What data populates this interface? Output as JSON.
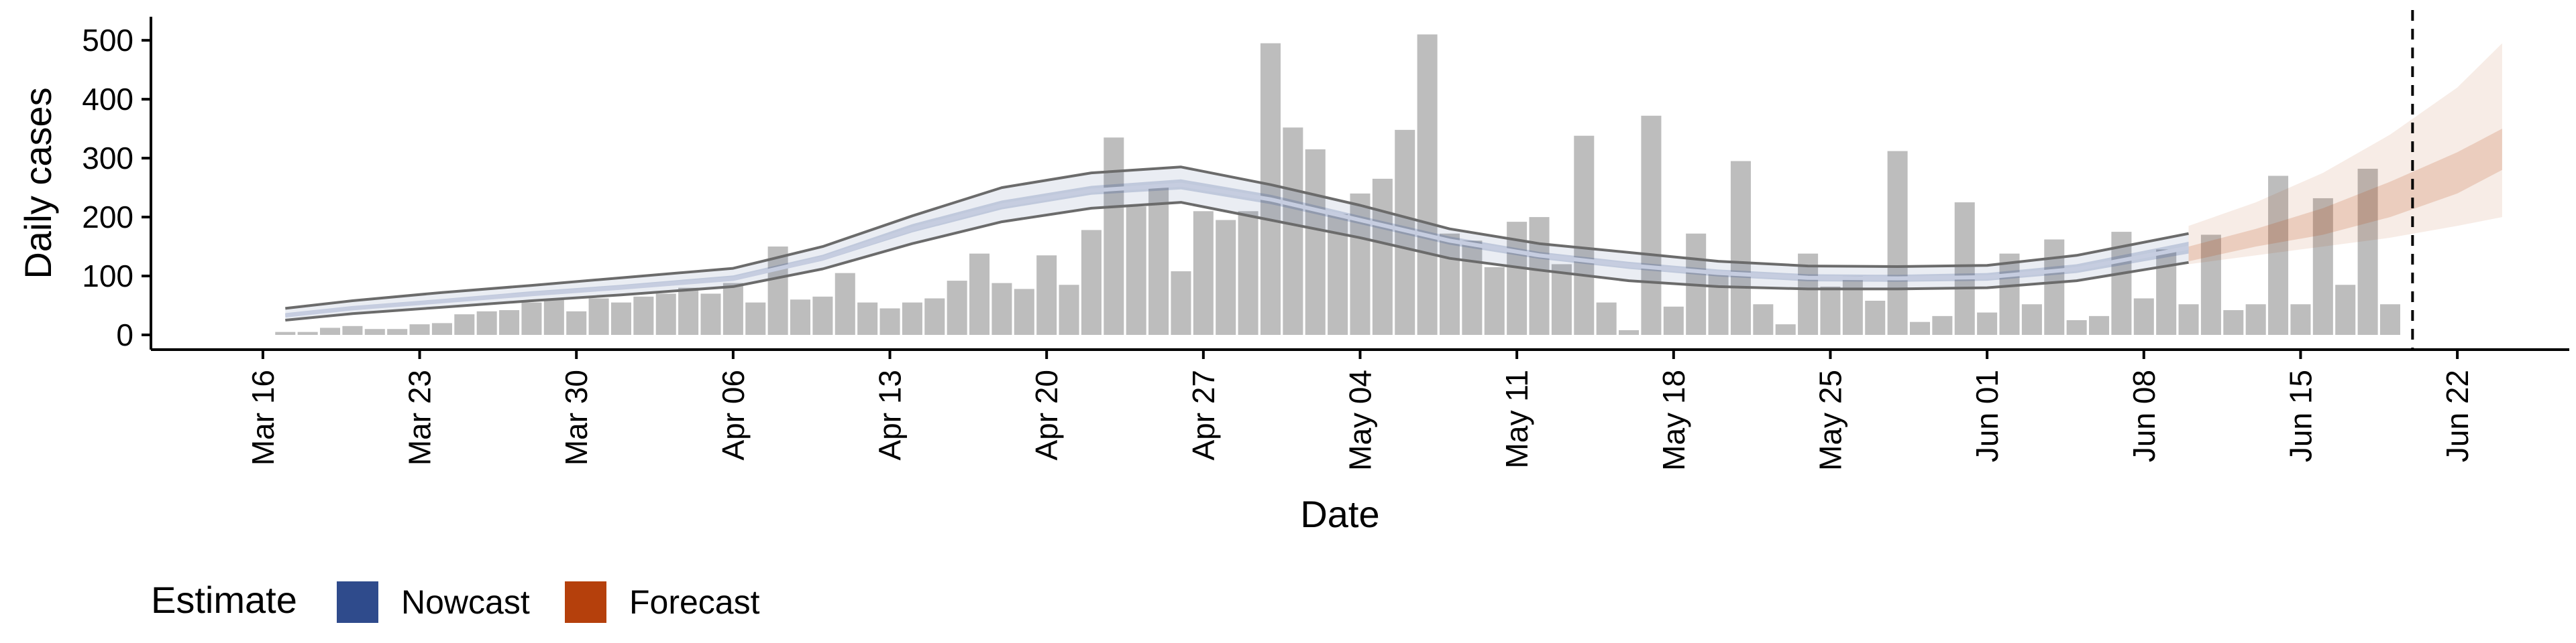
{
  "chart_data": {
    "type": "bar",
    "xlabel": "Date",
    "ylabel": "Daily cases",
    "ylim": [
      -25,
      540
    ],
    "y_ticks": [
      0,
      100,
      200,
      300,
      400,
      500
    ],
    "y_tick_labels": [
      "0",
      "100",
      "200",
      "300",
      "400",
      "500"
    ],
    "x_range": [
      "2020-03-11",
      "2020-06-27"
    ],
    "x_ticks": [
      "2020-03-16",
      "2020-03-23",
      "2020-03-30",
      "2020-04-06",
      "2020-04-13",
      "2020-04-20",
      "2020-04-27",
      "2020-05-04",
      "2020-05-11",
      "2020-05-18",
      "2020-05-25",
      "2020-06-01",
      "2020-06-08",
      "2020-06-15",
      "2020-06-22"
    ],
    "x_tick_labels": [
      "Mar 16",
      "Mar 23",
      "Mar 30",
      "Apr 06",
      "Apr 13",
      "Apr 20",
      "Apr 27",
      "May 04",
      "May 11",
      "May 18",
      "May 25",
      "Jun 01",
      "Jun 08",
      "Jun 15",
      "Jun 22"
    ],
    "grid": false,
    "bars": {
      "color": "#bdbdbd",
      "start_date": "2020-03-17",
      "values": [
        5,
        5,
        12,
        15,
        10,
        10,
        18,
        20,
        35,
        40,
        42,
        55,
        60,
        40,
        62,
        55,
        65,
        70,
        80,
        70,
        88,
        55,
        150,
        60,
        65,
        105,
        55,
        45,
        55,
        62,
        92,
        138,
        88,
        78,
        135,
        85,
        178,
        335,
        218,
        250,
        108,
        210,
        195,
        210,
        495,
        352,
        315,
        205,
        240,
        265,
        348,
        510,
        172,
        160,
        115,
        192,
        200,
        120,
        338,
        55,
        8,
        372,
        48,
        172,
        105,
        295,
        52,
        18,
        138,
        82,
        100,
        58,
        312,
        22,
        32,
        225,
        38,
        138,
        52,
        162,
        25,
        32,
        175,
        62,
        145,
        52,
        170,
        42,
        52,
        270,
        52,
        232,
        85,
        282,
        52
      ]
    },
    "nowcast": {
      "name": "Nowcast",
      "color": "#2f4b8c",
      "x": [
        "2020-03-17",
        "2020-03-20",
        "2020-03-24",
        "2020-03-28",
        "2020-04-01",
        "2020-04-06",
        "2020-04-10",
        "2020-04-14",
        "2020-04-18",
        "2020-04-22",
        "2020-04-26",
        "2020-04-30",
        "2020-05-04",
        "2020-05-08",
        "2020-05-12",
        "2020-05-16",
        "2020-05-20",
        "2020-05-24",
        "2020-05-28",
        "2020-06-01",
        "2020-06-05",
        "2020-06-10"
      ],
      "median": [
        33,
        45,
        57,
        69,
        80,
        95,
        130,
        180,
        220,
        245,
        255,
        230,
        195,
        160,
        135,
        118,
        105,
        97,
        96,
        98,
        112,
        148
      ],
      "inner_lower": [
        30,
        42,
        54,
        66,
        77,
        92,
        126,
        174,
        213,
        238,
        247,
        222,
        188,
        153,
        129,
        112,
        99,
        91,
        90,
        92,
        105,
        138
      ],
      "inner_upper": [
        37,
        49,
        61,
        74,
        85,
        101,
        136,
        188,
        228,
        253,
        264,
        238,
        202,
        167,
        141,
        124,
        111,
        103,
        102,
        105,
        120,
        158
      ],
      "outer_lower": [
        25,
        36,
        47,
        58,
        68,
        82,
        112,
        155,
        192,
        215,
        225,
        195,
        165,
        130,
        110,
        92,
        82,
        78,
        78,
        80,
        92,
        123
      ],
      "outer_upper": [
        45,
        58,
        72,
        84,
        97,
        113,
        150,
        202,
        250,
        275,
        285,
        255,
        220,
        180,
        155,
        140,
        125,
        117,
        116,
        118,
        135,
        172
      ]
    },
    "forecast": {
      "name": "Forecast",
      "color": "#b5400c",
      "x": [
        "2020-06-10",
        "2020-06-13",
        "2020-06-16",
        "2020-06-19",
        "2020-06-22",
        "2020-06-24"
      ],
      "inner_lower": [
        125,
        150,
        170,
        200,
        240,
        280
      ],
      "inner_upper": [
        150,
        180,
        215,
        260,
        310,
        350
      ],
      "outer_lower": [
        120,
        135,
        150,
        165,
        185,
        200
      ],
      "outer_upper": [
        185,
        225,
        275,
        340,
        420,
        495
      ]
    },
    "vline_date": "2020-06-20",
    "legend": {
      "title": "Estimate",
      "position": "bottom-left",
      "items": [
        {
          "label": "Nowcast",
          "color": "#2f4b8c"
        },
        {
          "label": "Forecast",
          "color": "#b5400c"
        }
      ]
    }
  }
}
